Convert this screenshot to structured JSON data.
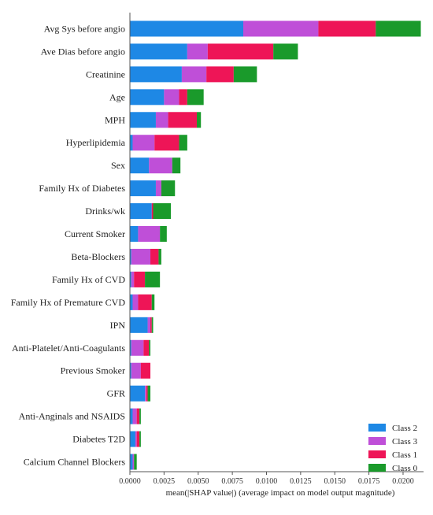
{
  "chart_data": {
    "type": "bar",
    "orientation": "horizontal",
    "stacked": true,
    "xlabel": "mean(|SHAP value|) (average impact on model output magnitude)",
    "xlim": [
      0,
      0.0215
    ],
    "xticks": [
      "0.0000",
      "0.0025",
      "0.0050",
      "0.0075",
      "0.0100",
      "0.0125",
      "0.0150",
      "0.0175",
      "0.0200"
    ],
    "grid": false,
    "legend_position": "bottom-right",
    "categories": [
      "Avg Sys before angio",
      "Ave Dias before angio",
      "Creatinine",
      "Age",
      "MPH",
      "Hyperlipidemia",
      "Sex",
      "Family Hx of Diabetes",
      "Drinks/wk",
      "Current Smoker",
      "Beta-Blockers",
      "Family Hx of CVD",
      "Family Hx of Premature CVD",
      "IPN",
      "Anti-Platelet/Anti-Coagulants",
      "Previous Smoker",
      "GFR",
      "Anti-Anginals and NSAIDS",
      "Diabetes T2D",
      "Calcium Channel Blockers"
    ],
    "series": [
      {
        "name": "Class 2",
        "color": "#1E88E5",
        "values": [
          0.0083,
          0.0042,
          0.0038,
          0.0025,
          0.0019,
          0.0002,
          0.0014,
          0.0019,
          0.0016,
          0.0006,
          0.0001,
          0.0001,
          0.0002,
          0.0013,
          0.0001,
          0.0001,
          0.0011,
          0.0002,
          0.0004,
          0.0002
        ]
      },
      {
        "name": "Class 3",
        "color": "#BF4FD8",
        "values": [
          0.0055,
          0.0015,
          0.0018,
          0.0011,
          0.0009,
          0.0016,
          0.0017,
          0.0004,
          0.0,
          0.0016,
          0.0014,
          0.0002,
          0.0004,
          0.0002,
          0.0009,
          0.0007,
          0.0001,
          0.0003,
          0.0001,
          0.0001
        ]
      },
      {
        "name": "Class 1",
        "color": "#EE1557",
        "values": [
          0.0042,
          0.0048,
          0.002,
          0.0006,
          0.0021,
          0.0018,
          0.0,
          0.0,
          0.0001,
          0.0,
          0.0006,
          0.0008,
          0.001,
          0.0001,
          0.0004,
          0.0007,
          0.0001,
          0.0002,
          0.0002,
          0.0
        ]
      },
      {
        "name": "Class 0",
        "color": "#1A9A2B",
        "values": [
          0.0033,
          0.0018,
          0.0017,
          0.0012,
          0.0003,
          0.0006,
          0.0006,
          0.001,
          0.0013,
          0.0005,
          0.0002,
          0.0011,
          0.0002,
          0.0001,
          0.0001,
          0.0,
          0.0002,
          0.0001,
          0.0001,
          0.0002
        ]
      }
    ],
    "legend_order": [
      "Class 2",
      "Class 3",
      "Class 1",
      "Class 0"
    ]
  }
}
